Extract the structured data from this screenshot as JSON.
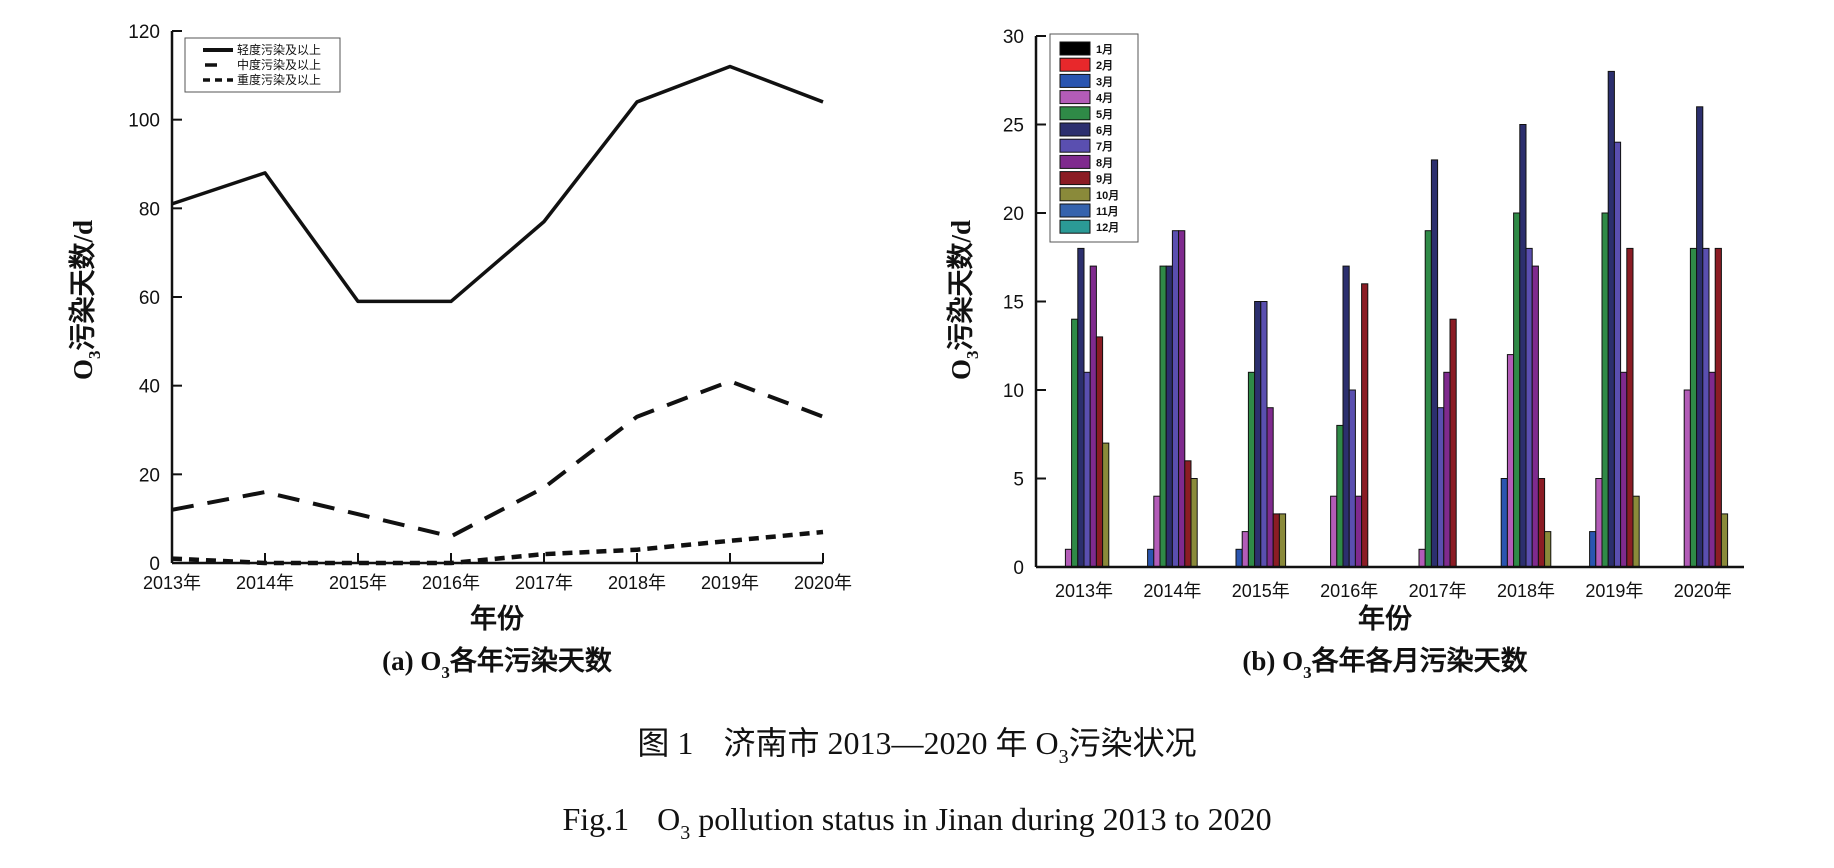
{
  "figure": {
    "caption_cn_prefix": "图 1",
    "caption_cn_text": "济南市 2013—2020 年 O",
    "caption_cn_sub": "3",
    "caption_cn_suffix": "污染状况",
    "caption_en_prefix": "Fig.1",
    "caption_en_o": "O",
    "caption_en_sub": "3",
    "caption_en_suffix": " pollution status in Jinan during 2013 to 2020"
  },
  "chart_data": [
    {
      "id": "a",
      "type": "line",
      "subcaption_prefix": "(a) O",
      "subcaption_sub": "3",
      "subcaption_suffix": "各年污染天数",
      "title": "",
      "xlabel": "年份",
      "ylabel_prefix": "O",
      "ylabel_sub": "3",
      "ylabel_suffix": "污染天数/d",
      "ylim": [
        0,
        120
      ],
      "yticks": [
        0,
        20,
        40,
        60,
        80,
        100,
        120
      ],
      "grid": false,
      "legend_position": "top-left",
      "categories": [
        "2013年",
        "2014年",
        "2015年",
        "2016年",
        "2017年",
        "2018年",
        "2019年",
        "2020年"
      ],
      "series": [
        {
          "name": "轻度污染及以上",
          "style": "solid",
          "values": [
            81,
            88,
            59,
            59,
            77,
            104,
            112,
            104
          ]
        },
        {
          "name": "中度污染及以上",
          "style": "dashed",
          "values": [
            12,
            16,
            11,
            6,
            17,
            33,
            41,
            33
          ]
        },
        {
          "name": "重度污染及以上",
          "style": "dotted",
          "values": [
            1,
            0,
            0,
            0,
            2,
            3,
            5,
            7
          ]
        }
      ]
    },
    {
      "id": "b",
      "type": "bar",
      "subcaption_prefix": "(b) O",
      "subcaption_sub": "3",
      "subcaption_suffix": "各年各月污染天数",
      "title": "",
      "xlabel": "年份",
      "ylabel_prefix": "O",
      "ylabel_sub": "3",
      "ylabel_suffix": "污染天数/d",
      "ylim": [
        0,
        30
      ],
      "yticks": [
        0,
        5,
        10,
        15,
        20,
        25,
        30
      ],
      "grid": false,
      "legend_position": "top-left",
      "categories": [
        "2013年",
        "2014年",
        "2015年",
        "2016年",
        "2017年",
        "2018年",
        "2019年",
        "2020年"
      ],
      "series": [
        {
          "name": "1月",
          "color": "#000000",
          "values": [
            0,
            0,
            0,
            0,
            0,
            0,
            0,
            0
          ]
        },
        {
          "name": "2月",
          "color": "#e8282b",
          "values": [
            0,
            0,
            0,
            0,
            0,
            0,
            0,
            0
          ]
        },
        {
          "name": "3月",
          "color": "#2a55b0",
          "values": [
            0,
            1,
            1,
            0,
            0,
            5,
            2,
            0
          ]
        },
        {
          "name": "4月",
          "color": "#b35cb8",
          "values": [
            1,
            4,
            2,
            4,
            1,
            12,
            5,
            10
          ]
        },
        {
          "name": "5月",
          "color": "#2f8a47",
          "values": [
            14,
            17,
            11,
            8,
            19,
            20,
            20,
            18
          ]
        },
        {
          "name": "6月",
          "color": "#2c2f6e",
          "values": [
            18,
            17,
            15,
            17,
            23,
            25,
            28,
            26
          ]
        },
        {
          "name": "7月",
          "color": "#5a4fb0",
          "values": [
            11,
            19,
            15,
            10,
            9,
            18,
            24,
            18
          ]
        },
        {
          "name": "8月",
          "color": "#7f2a8e",
          "values": [
            17,
            19,
            9,
            4,
            11,
            17,
            11,
            11
          ]
        },
        {
          "name": "9月",
          "color": "#8b1c24",
          "values": [
            13,
            6,
            3,
            16,
            14,
            5,
            18,
            18
          ]
        },
        {
          "name": "10月",
          "color": "#8a8a3a",
          "values": [
            7,
            5,
            3,
            0,
            0,
            2,
            4,
            3
          ]
        },
        {
          "name": "11月",
          "color": "#3563ad",
          "values": [
            0,
            0,
            0,
            0,
            0,
            0,
            0,
            0
          ]
        },
        {
          "name": "12月",
          "color": "#2b9a96",
          "values": [
            0,
            0,
            0,
            0,
            0,
            0,
            0,
            0
          ]
        }
      ]
    }
  ]
}
